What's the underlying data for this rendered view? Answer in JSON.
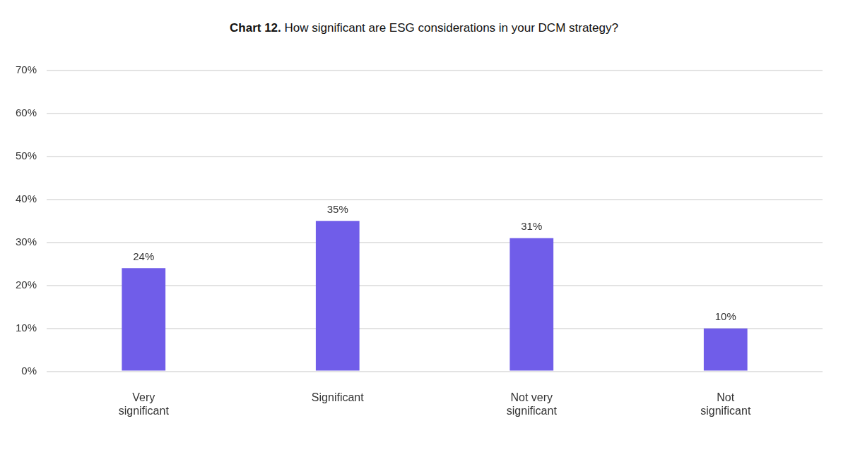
{
  "chart_data": {
    "type": "bar",
    "title": "Chart 12. How significant are ESG considerations in your DCM strategy?",
    "categories": [
      "Very significant",
      "Significant",
      "Not very significant",
      "Not significant"
    ],
    "values": [
      24,
      35,
      31,
      10
    ],
    "value_labels": [
      "24%",
      "35%",
      "31%",
      "10%"
    ],
    "data_labels": true,
    "color": "#705de9",
    "ylim": [
      0,
      70
    ],
    "yticks": [
      {
        "value": 0,
        "label": "0%"
      },
      {
        "value": 10,
        "label": "10%"
      },
      {
        "value": 20,
        "label": "20%"
      },
      {
        "value": 30,
        "label": "30%"
      },
      {
        "value": 40,
        "label": "40%"
      },
      {
        "value": 50,
        "label": "50%"
      },
      {
        "value": 60,
        "label": "60%"
      },
      {
        "value": 70,
        "label": "70%"
      }
    ],
    "grid": true
  }
}
